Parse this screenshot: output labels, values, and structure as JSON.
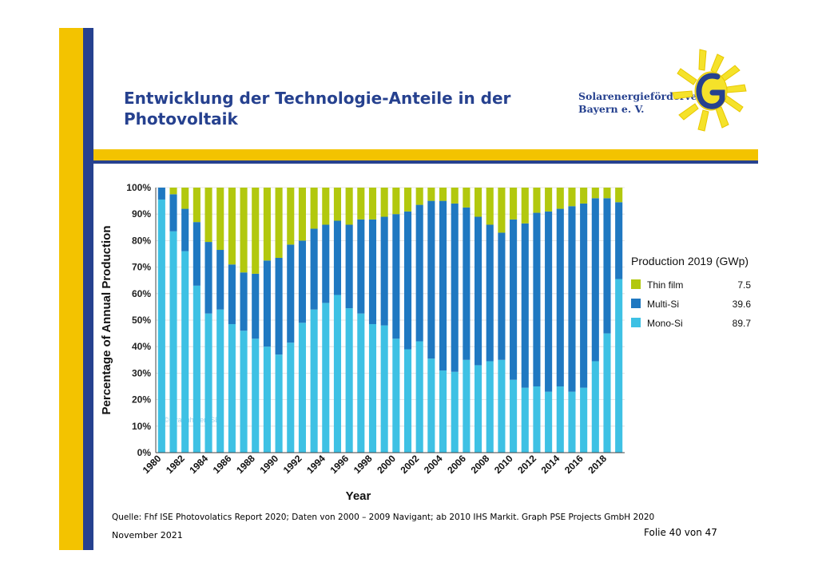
{
  "slide": {
    "title": "Entwicklung der Technologie-Anteile in der Photovoltaik",
    "logo_line1": "Solarenergieförderverein",
    "logo_line2": "Bayern e. V.",
    "source": "Quelle: Fhf ISE Photovolatics Report 2020; Daten von 2000 – 2009 Navigant; ab 2010 IHS Markit. Graph PSE Projects GmbH 2020",
    "date": "November 2021",
    "page": "Folie 40 von 47",
    "watermark": "© Fraunhofer ISE",
    "colors": {
      "accent_yellow": "#f3c300",
      "accent_blue": "#26418f"
    }
  },
  "chart_data": {
    "type": "bar",
    "stacked": true,
    "xlabel": "Year",
    "ylabel": "Percentage of Annual Production",
    "ylim": [
      0,
      100
    ],
    "y_ticks": [
      "0%",
      "10%",
      "20%",
      "30%",
      "40%",
      "50%",
      "60%",
      "70%",
      "80%",
      "90%",
      "100%"
    ],
    "x": [
      1980,
      1981,
      1982,
      1983,
      1984,
      1985,
      1986,
      1987,
      1988,
      1989,
      1990,
      1991,
      1992,
      1993,
      1994,
      1995,
      1996,
      1997,
      1998,
      1999,
      2000,
      2001,
      2002,
      2003,
      2004,
      2005,
      2006,
      2007,
      2008,
      2009,
      2010,
      2011,
      2012,
      2013,
      2014,
      2015,
      2016,
      2017,
      2018,
      2019
    ],
    "x_tick_labels": [
      "1980",
      "1982",
      "1984",
      "1986",
      "1988",
      "1990",
      "1992",
      "1994",
      "1996",
      "1998",
      "2000",
      "2002",
      "2004",
      "2006",
      "2008",
      "2010",
      "2012",
      "2014",
      "2016",
      "2018"
    ],
    "series": [
      {
        "name": "Mono-Si",
        "color": "#3ec1e4",
        "values": [
          95.5,
          83.5,
          76,
          63,
          52.5,
          54,
          48.5,
          46,
          43,
          40,
          37,
          41.5,
          49,
          54,
          56.5,
          59.5,
          54.5,
          52.5,
          48.5,
          48,
          43,
          39,
          42,
          35.5,
          31,
          30.5,
          35,
          33,
          34.5,
          35,
          27.5,
          24.5,
          25,
          23,
          25,
          23,
          24.5,
          34.5,
          45,
          65.5
        ]
      },
      {
        "name": "Multi-Si",
        "color": "#1f78c1",
        "values": [
          4.5,
          14,
          16,
          24,
          27,
          22.5,
          22.5,
          22,
          24.5,
          32.5,
          36.5,
          37,
          31,
          30.5,
          29.5,
          28,
          31.5,
          35.5,
          39.5,
          41,
          47,
          52,
          51.5,
          59.5,
          64,
          63.5,
          57.5,
          56,
          51.5,
          48,
          60.5,
          62,
          65.5,
          68,
          67,
          70,
          69.5,
          61.5,
          51,
          29
        ]
      },
      {
        "name": "Thin film",
        "color": "#b2c80e",
        "values": [
          0,
          2.5,
          8,
          13,
          20.5,
          23.5,
          29,
          32,
          32.5,
          27.5,
          26.5,
          21.5,
          20,
          15.5,
          14,
          12.5,
          14,
          12,
          12,
          11,
          10,
          9,
          6.5,
          5,
          5,
          6,
          7.5,
          11,
          14,
          17,
          12,
          13.5,
          9.5,
          9,
          8,
          7,
          6,
          4,
          4,
          5.5
        ]
      }
    ],
    "legend": {
      "title": "Production 2019 (GWp)",
      "placement": "right",
      "entries": [
        {
          "label": "Thin film",
          "value": "7.5",
          "color": "#b2c80e"
        },
        {
          "label": "Multi-Si",
          "value": "39.6",
          "color": "#1f78c1"
        },
        {
          "label": "Mono-Si",
          "value": "89.7",
          "color": "#3ec1e4"
        }
      ]
    }
  }
}
